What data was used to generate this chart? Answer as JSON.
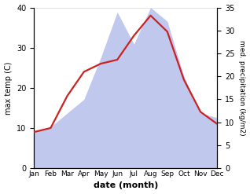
{
  "months": [
    "Jan",
    "Feb",
    "Mar",
    "Apr",
    "May",
    "Jun",
    "Jul",
    "Aug",
    "Sep",
    "Oct",
    "Nov",
    "Dec"
  ],
  "temperature": [
    9,
    10,
    18,
    24,
    26,
    27,
    33,
    38,
    34,
    22,
    14,
    11
  ],
  "precipitation": [
    8,
    9,
    12,
    15,
    24,
    34,
    27,
    35,
    32,
    20,
    12,
    11
  ],
  "temp_color": "#cc2222",
  "precip_color": "#c0c8ee",
  "temp_ylim": [
    0,
    40
  ],
  "precip_ylim": [
    0,
    35
  ],
  "temp_yticks": [
    0,
    10,
    20,
    30,
    40
  ],
  "precip_yticks": [
    0,
    5,
    10,
    15,
    20,
    25,
    30,
    35
  ],
  "xlabel": "date (month)",
  "ylabel_left": "max temp (C)",
  "ylabel_right": "med. precipitation (kg/m2)",
  "background_color": "#ffffff",
  "linewidth": 1.6,
  "fig_width": 3.18,
  "fig_height": 2.47,
  "dpi": 100
}
